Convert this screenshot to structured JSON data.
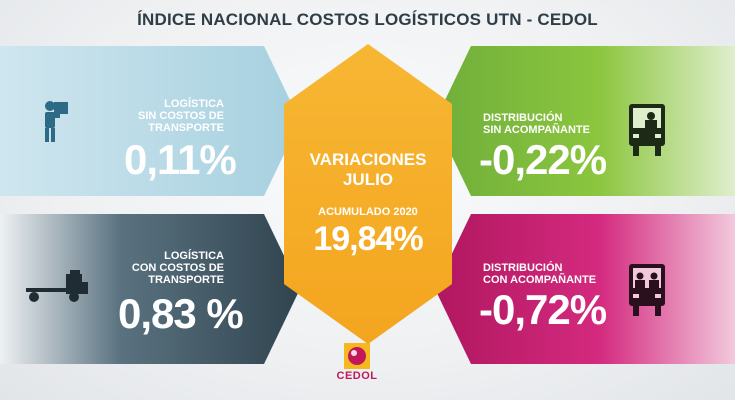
{
  "title": "ÍNDICE NACIONAL COSTOS LOGÍSTICOS UTN - CEDOL",
  "center": {
    "heading_line1": "VARIACIONES",
    "heading_line2": "JULIO",
    "accum_label": "ACUMULADO 2020",
    "accum_value": "19,84%"
  },
  "panels": {
    "top_left": {
      "label_lines": [
        "LOGÍSTICA",
        "SIN COSTOS DE",
        "TRANSPORTE"
      ],
      "value": "0,11%",
      "icon": "worker-carrying-box-icon"
    },
    "bottom_left": {
      "label_lines": [
        "LOGÍSTICA",
        "CON COSTOS DE",
        "TRANSPORTE"
      ],
      "value": "0,83 %",
      "icon": "truck-icon"
    },
    "top_right": {
      "label_lines": [
        "DISTRIBUCIÓN",
        "SIN ACOMPAÑANTE"
      ],
      "value": "-0,22%",
      "icon": "truck-front-one-driver-icon"
    },
    "bottom_right": {
      "label_lines": [
        "DISTRIBUCIÓN",
        "CON ACOMPAÑANTE"
      ],
      "value": "-0,72%",
      "icon": "truck-front-two-people-icon"
    }
  },
  "logo": {
    "text": "CEDOL"
  },
  "colors": {
    "light_blue": "#a6d0df",
    "dark_slate": "#30444f",
    "green": "#8cc63f",
    "magenta": "#d42a7f",
    "orange": "#f4a51f",
    "title_text": "#2f3e46"
  }
}
